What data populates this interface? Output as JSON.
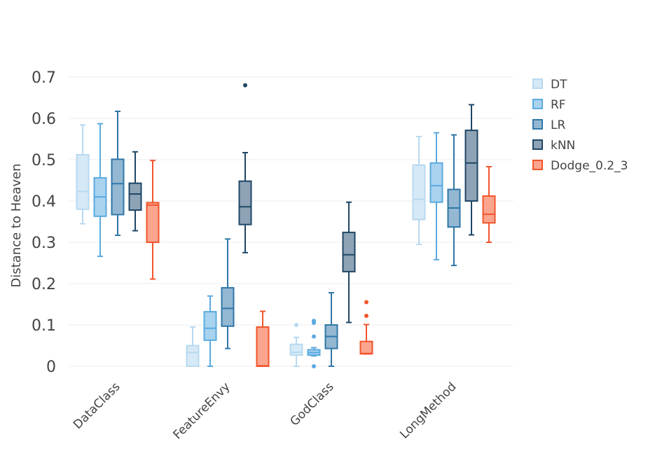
{
  "chart_data": {
    "type": "box",
    "title": "",
    "xlabel": "",
    "ylabel": "Distance to Heaven",
    "ylim": [
      0,
      0.7
    ],
    "yticks": [
      {
        "value": 0,
        "label": "0"
      },
      {
        "value": 0.1,
        "label": "0.1"
      },
      {
        "value": 0.2,
        "label": "0.2"
      },
      {
        "value": 0.3,
        "label": "0.3"
      },
      {
        "value": 0.4,
        "label": "0.4"
      },
      {
        "value": 0.5,
        "label": "0.5"
      },
      {
        "value": 0.6,
        "label": "0.6"
      },
      {
        "value": 0.7,
        "label": "0.7"
      }
    ],
    "categories": [
      "DataClass",
      "FeatureEnvy",
      "GodClass",
      "LongMethod"
    ],
    "grid": true,
    "legend_position": "top-right",
    "series": [
      {
        "name": "DT",
        "color": "#b8d9f0",
        "fill": "#d6e9f7",
        "boxes": [
          {
            "min": 0.345,
            "q1": 0.38,
            "median": 0.423,
            "q3": 0.512,
            "max": 0.584,
            "outliers": []
          },
          {
            "min": 0.0,
            "q1": 0.0,
            "median": 0.033,
            "q3": 0.05,
            "max": 0.095,
            "outliers": []
          },
          {
            "min": 0.0,
            "q1": 0.027,
            "median": 0.034,
            "q3": 0.053,
            "max": 0.07,
            "outliers": [
              0.1
            ]
          },
          {
            "min": 0.295,
            "q1": 0.355,
            "median": 0.404,
            "q3": 0.487,
            "max": 0.556,
            "outliers": []
          }
        ]
      },
      {
        "name": "RF",
        "color": "#5aaae0",
        "fill": "#a9d2ee",
        "boxes": [
          {
            "min": 0.266,
            "q1": 0.363,
            "median": 0.41,
            "q3": 0.456,
            "max": 0.587,
            "outliers": []
          },
          {
            "min": 0.0,
            "q1": 0.063,
            "median": 0.092,
            "q3": 0.132,
            "max": 0.17,
            "outliers": []
          },
          {
            "min": 0.025,
            "q1": 0.027,
            "median": 0.033,
            "q3": 0.04,
            "max": 0.045,
            "outliers": [
              0.0,
              0.072,
              0.105,
              0.11
            ]
          },
          {
            "min": 0.258,
            "q1": 0.397,
            "median": 0.437,
            "q3": 0.492,
            "max": 0.565,
            "outliers": []
          }
        ]
      },
      {
        "name": "LR",
        "color": "#2f77a8",
        "fill": "#94b8d2",
        "boxes": [
          {
            "min": 0.317,
            "q1": 0.367,
            "median": 0.442,
            "q3": 0.501,
            "max": 0.617,
            "outliers": []
          },
          {
            "min": 0.043,
            "q1": 0.097,
            "median": 0.14,
            "q3": 0.19,
            "max": 0.308,
            "outliers": []
          },
          {
            "min": 0.0,
            "q1": 0.043,
            "median": 0.072,
            "q3": 0.1,
            "max": 0.178,
            "outliers": []
          },
          {
            "min": 0.244,
            "q1": 0.337,
            "median": 0.383,
            "q3": 0.428,
            "max": 0.56,
            "outliers": []
          }
        ]
      },
      {
        "name": "kNN",
        "color": "#1f4766",
        "fill": "#8ea3b5",
        "boxes": [
          {
            "min": 0.328,
            "q1": 0.378,
            "median": 0.417,
            "q3": 0.443,
            "max": 0.519,
            "outliers": []
          },
          {
            "min": 0.275,
            "q1": 0.343,
            "median": 0.386,
            "q3": 0.448,
            "max": 0.517,
            "outliers": [
              0.68
            ]
          },
          {
            "min": 0.106,
            "q1": 0.229,
            "median": 0.27,
            "q3": 0.324,
            "max": 0.397,
            "outliers": []
          },
          {
            "min": 0.318,
            "q1": 0.4,
            "median": 0.492,
            "q3": 0.571,
            "max": 0.633,
            "outliers": []
          }
        ]
      },
      {
        "name": "Dodge_0.2_3",
        "color": "#f2552c",
        "fill": "#fba58f",
        "boxes": [
          {
            "min": 0.211,
            "q1": 0.3,
            "median": 0.39,
            "q3": 0.396,
            "max": 0.498,
            "outliers": []
          },
          {
            "min": 0.0,
            "q1": 0.0,
            "median": 0.001,
            "q3": 0.095,
            "max": 0.133,
            "outliers": []
          },
          {
            "min": 0.03,
            "q1": 0.03,
            "median": 0.031,
            "q3": 0.06,
            "max": 0.101,
            "outliers": [
              0.122,
              0.155
            ]
          },
          {
            "min": 0.3,
            "q1": 0.347,
            "median": 0.368,
            "q3": 0.412,
            "max": 0.483,
            "outliers": []
          }
        ]
      }
    ]
  }
}
